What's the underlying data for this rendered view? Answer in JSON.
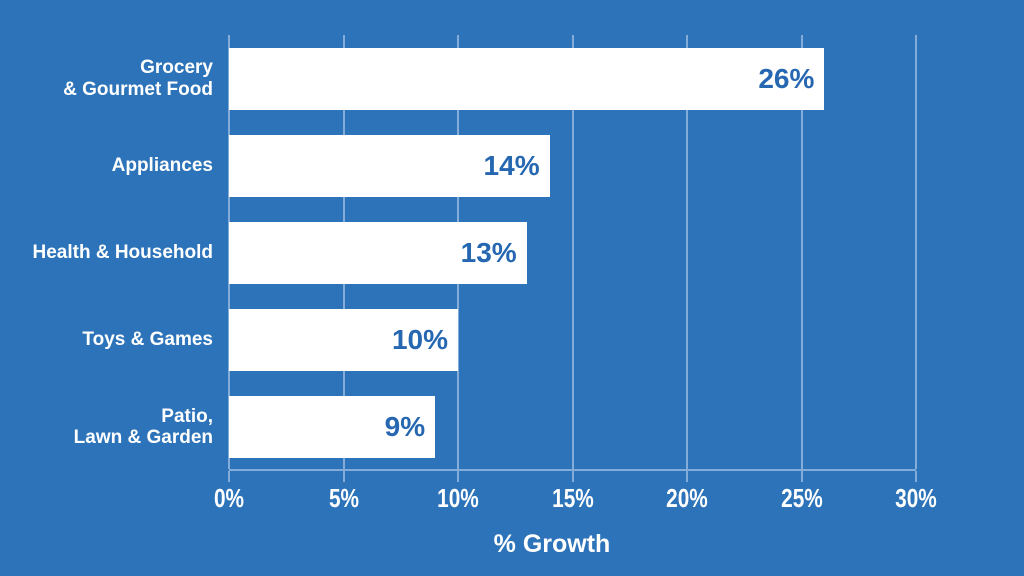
{
  "chart_data": {
    "type": "bar",
    "orientation": "horizontal",
    "title": "",
    "xlabel": "% Growth",
    "ylabel": "",
    "categories": [
      "Grocery\n& Gourmet Food",
      "Appliances",
      "Health & Household",
      "Toys & Games",
      "Patio,\nLawn & Garden"
    ],
    "values": [
      26,
      14,
      13,
      10,
      9
    ],
    "value_labels": [
      "26%",
      "14%",
      "13%",
      "10%",
      "9%"
    ],
    "x_ticks": [
      {
        "value": 0,
        "label": "0%"
      },
      {
        "value": 5,
        "label": "5%"
      },
      {
        "value": 10,
        "label": "10%"
      },
      {
        "value": 15,
        "label": "15%"
      },
      {
        "value": 20,
        "label": "20%"
      },
      {
        "value": 25,
        "label": "25%"
      },
      {
        "value": 30,
        "label": "30%"
      }
    ],
    "xlim": [
      0,
      30
    ],
    "grid": true,
    "legend": false,
    "colors": {
      "background": "#2C73B9",
      "bar": "#FFFFFF",
      "value_label": "#2667B2",
      "axis_text": "#FFFFFF",
      "gridline": "#84ACD8"
    }
  }
}
